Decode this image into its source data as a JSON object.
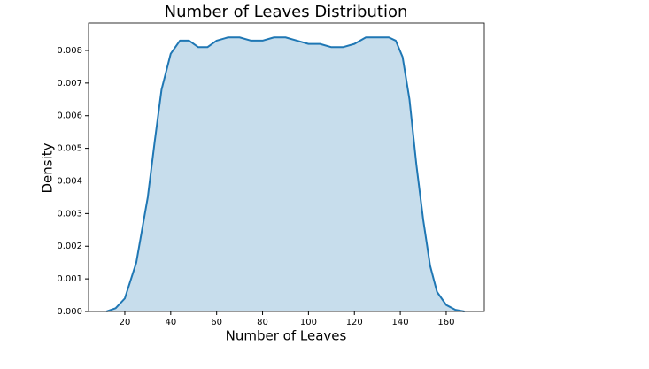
{
  "chart_data": {
    "type": "area",
    "title": "Number of Leaves Distribution",
    "x_label": "Number of Leaves",
    "y_label": "Density",
    "color": "#1f77b4",
    "x": [
      12,
      16,
      20,
      25,
      30,
      33,
      36,
      40,
      44,
      48,
      52,
      56,
      60,
      65,
      70,
      75,
      80,
      85,
      90,
      95,
      100,
      105,
      110,
      115,
      120,
      125,
      130,
      135,
      138,
      141,
      144,
      147,
      150,
      153,
      156,
      160,
      164,
      168
    ],
    "values": [
      0,
      0.0001,
      0.0004,
      0.0015,
      0.0035,
      0.0052,
      0.0068,
      0.0079,
      0.0083,
      0.0083,
      0.0081,
      0.0081,
      0.0083,
      0.0084,
      0.0084,
      0.0083,
      0.0083,
      0.0084,
      0.0084,
      0.0083,
      0.0082,
      0.0082,
      0.0081,
      0.0081,
      0.0082,
      0.0084,
      0.0084,
      0.0084,
      0.0083,
      0.0078,
      0.0065,
      0.0045,
      0.0028,
      0.0014,
      0.0006,
      0.0002,
      5e-05,
      0
    ],
    "xlim": [
      4.2,
      176.6
    ],
    "xticks": [
      20,
      40,
      60,
      80,
      100,
      120,
      140,
      160
    ],
    "ylim": [
      0,
      0.00884
    ],
    "yticks": [
      {
        "value": 0,
        "label": "0.000"
      },
      0.001,
      0.002,
      0.003,
      0.004,
      0.005,
      0.006,
      0.007,
      0.008
    ]
  }
}
